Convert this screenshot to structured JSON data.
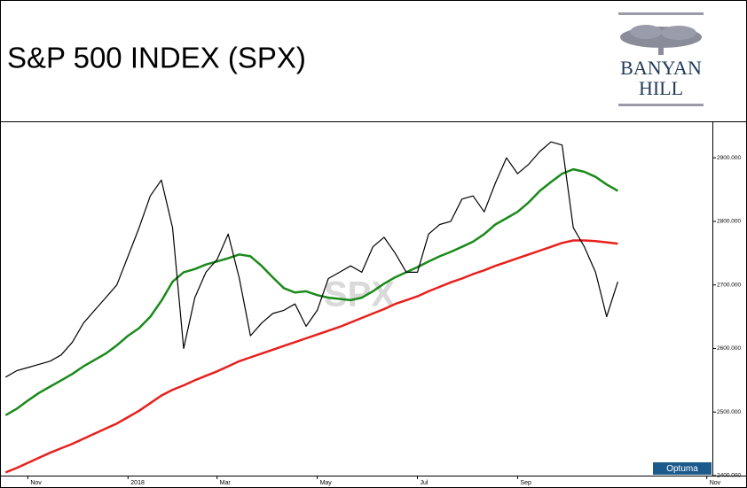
{
  "header": {
    "title": "S&P 500 INDEX (SPX)",
    "logo": {
      "line1": "BANYAN",
      "line2": "HILL"
    }
  },
  "chart_data": {
    "type": "line",
    "watermark": "SPX",
    "source": "Optuma",
    "categories": [
      null,
      null,
      "Nov",
      null,
      null,
      null,
      null,
      null,
      null,
      null,
      null,
      "2018",
      null,
      null,
      null,
      null,
      null,
      null,
      null,
      "Mar",
      null,
      null,
      null,
      null,
      null,
      null,
      null,
      null,
      "May",
      null,
      null,
      null,
      null,
      null,
      null,
      null,
      null,
      "Jul",
      null,
      null,
      null,
      null,
      null,
      null,
      null,
      null,
      "Sep",
      null,
      null,
      null,
      null,
      null,
      null,
      null,
      null,
      null,
      null,
      null,
      null,
      null,
      null,
      null,
      null,
      "Nov"
    ],
    "series": [
      {
        "color": "#000000",
        "values": [
          2555,
          2565,
          2570,
          2575,
          2580,
          2590,
          2610,
          2640,
          2660,
          2680,
          2700,
          2745,
          2790,
          2840,
          2865,
          2790,
          2600,
          2680,
          2720,
          2740,
          2780,
          2710,
          2620,
          2640,
          2655,
          2660,
          2670,
          2635,
          2660,
          2710,
          2720,
          2730,
          2720,
          2760,
          2775,
          2750,
          2720,
          2720,
          2780,
          2795,
          2800,
          2835,
          2840,
          2815,
          2860,
          2900,
          2875,
          2890,
          2910,
          2925,
          2920,
          2790,
          2760,
          2720,
          2650,
          2705,
          null,
          null,
          null,
          null,
          null,
          null,
          null,
          null
        ]
      },
      {
        "color": "#1a8a1a",
        "values": [
          2495,
          2505,
          2518,
          2530,
          2540,
          2550,
          2560,
          2572,
          2582,
          2592,
          2605,
          2620,
          2632,
          2650,
          2675,
          2705,
          2720,
          2725,
          2732,
          2737,
          2742,
          2748,
          2745,
          2730,
          2712,
          2695,
          2688,
          2690,
          2684,
          2680,
          2678,
          2676,
          2680,
          2690,
          2702,
          2712,
          2720,
          2728,
          2737,
          2745,
          2752,
          2760,
          2768,
          2780,
          2795,
          2805,
          2815,
          2830,
          2848,
          2862,
          2875,
          2882,
          2878,
          2870,
          2858,
          2848,
          null,
          null,
          null,
          null,
          null,
          null,
          null,
          null
        ]
      },
      {
        "color": "#e8201c",
        "values": [
          2405,
          2412,
          2420,
          2428,
          2436,
          2443,
          2450,
          2458,
          2466,
          2474,
          2482,
          2492,
          2502,
          2514,
          2526,
          2535,
          2542,
          2550,
          2557,
          2564,
          2572,
          2580,
          2586,
          2592,
          2598,
          2604,
          2610,
          2616,
          2622,
          2628,
          2634,
          2641,
          2648,
          2655,
          2662,
          2670,
          2676,
          2682,
          2690,
          2697,
          2704,
          2710,
          2717,
          2723,
          2730,
          2736,
          2742,
          2748,
          2754,
          2760,
          2766,
          2770,
          2770,
          2769,
          2767,
          2765,
          null,
          null,
          null,
          null,
          null,
          null,
          null,
          null
        ]
      }
    ],
    "ylim": [
      2400,
      2956
    ],
    "yticks": [
      {
        "value": 2400,
        "label": "2400.000"
      },
      {
        "value": 2500,
        "label": "2500.000"
      },
      {
        "value": 2600,
        "label": "2600.000"
      },
      {
        "value": 2700,
        "label": "2700.000"
      },
      {
        "value": 2800,
        "label": "2800.000"
      },
      {
        "value": 2900,
        "label": "2900.000"
      }
    ],
    "grid": false
  }
}
